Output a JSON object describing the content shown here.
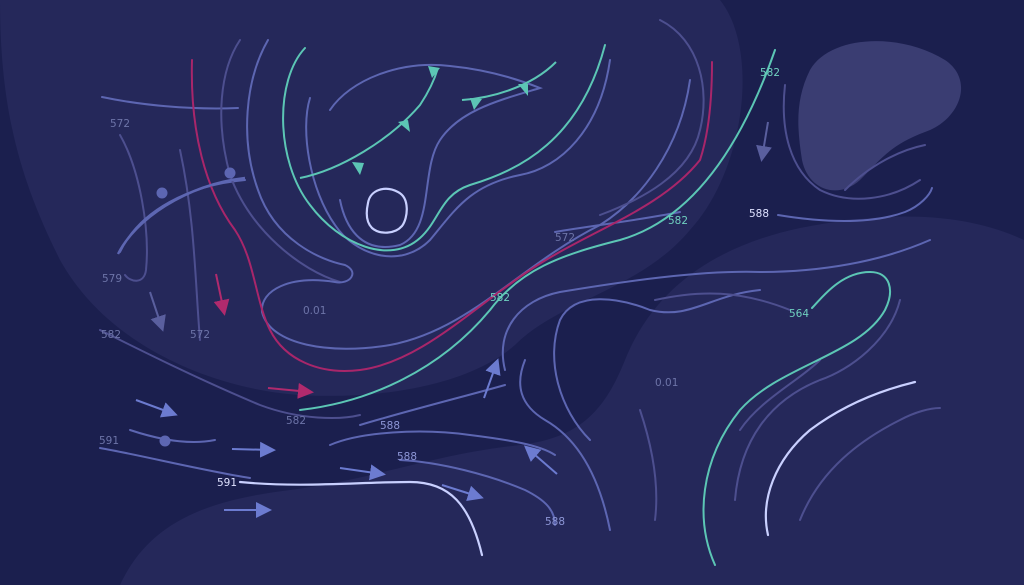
{
  "colors": {
    "background": "#1b1f4e",
    "region_light": "#26295a",
    "region_pale": "#3a3d73",
    "isoline_blue": "#5d66b2",
    "isoline_muted": "#4d4f8f",
    "isoline_teal": "#5cc6b5",
    "isoline_crimson": "#a8266a",
    "isoline_pale": "#b7c3ff",
    "arrow_blue": "#6c7bd0",
    "arrow_crimson": "#b02a6d"
  },
  "labels": {
    "l572a": "572",
    "l579": "579",
    "l582a": "582",
    "l572b": "572",
    "l001a": "0.01",
    "l591a": "591",
    "l591b": "591",
    "l582b": "582",
    "l588a": "588",
    "l588b": "588",
    "l588c": "588",
    "l582c": "582",
    "l572c": "572",
    "l582d": "582",
    "l582e": "582",
    "l588d": "588",
    "l564": "564",
    "l001b": "0.01"
  },
  "icons": {
    "cold_front": "triangle-barbs-icon",
    "warm_front": "semicircle-barbs-icon",
    "wind": "arrow-icon"
  }
}
